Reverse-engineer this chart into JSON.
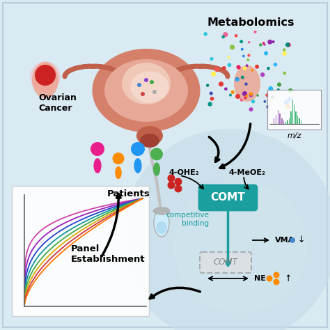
{
  "bg_color": "#daeaf3",
  "arrow_color": "#1a1a1a",
  "metabolomics_text": "Metabolomics",
  "mz_text": "m/z",
  "ovarian_cancer_text": "Ovarian\nCancer",
  "patients_text": "Patients",
  "panel_text": "Panel\nEstablishment",
  "comt_text": "COMT",
  "comt_color": "#1a9e9e",
  "competitive_text": "competitive\nbinding",
  "competitive_color": "#1a9e9e",
  "vma_text": "VMA",
  "ne_text": "NE",
  "ohe_text": "4-OHE₂",
  "meoe_text": "4-MeOE₂",
  "circle_color": "#b8d8e8",
  "panel_roc_colors": [
    "#cc44aa",
    "#9922bb",
    "#2244cc",
    "#119999",
    "#44aa44",
    "#ddaa00",
    "#cc3344",
    "#ff7700"
  ],
  "vma_dot_color": "#4488cc",
  "ne_dot_color": "#ff8c00",
  "ohe_dot_color": "#cc2222",
  "scatter_colors": [
    "#e53935",
    "#8e24aa",
    "#1e88e5",
    "#00897b",
    "#43a047",
    "#fb8c00",
    "#f06292",
    "#26c6da",
    "#ffee58",
    "#ef5350",
    "#ab47bc",
    "#29b6f6",
    "#e91e63",
    "#3f51b5",
    "#009688",
    "#8bc34a"
  ],
  "uterus_color": "#d4806a",
  "uterus_inner": "#e8b0a0",
  "tube_color": "#bbbbbb",
  "people_colors": [
    "#e91e8c",
    "#ff8c00",
    "#2196f3",
    "#4caf50"
  ]
}
